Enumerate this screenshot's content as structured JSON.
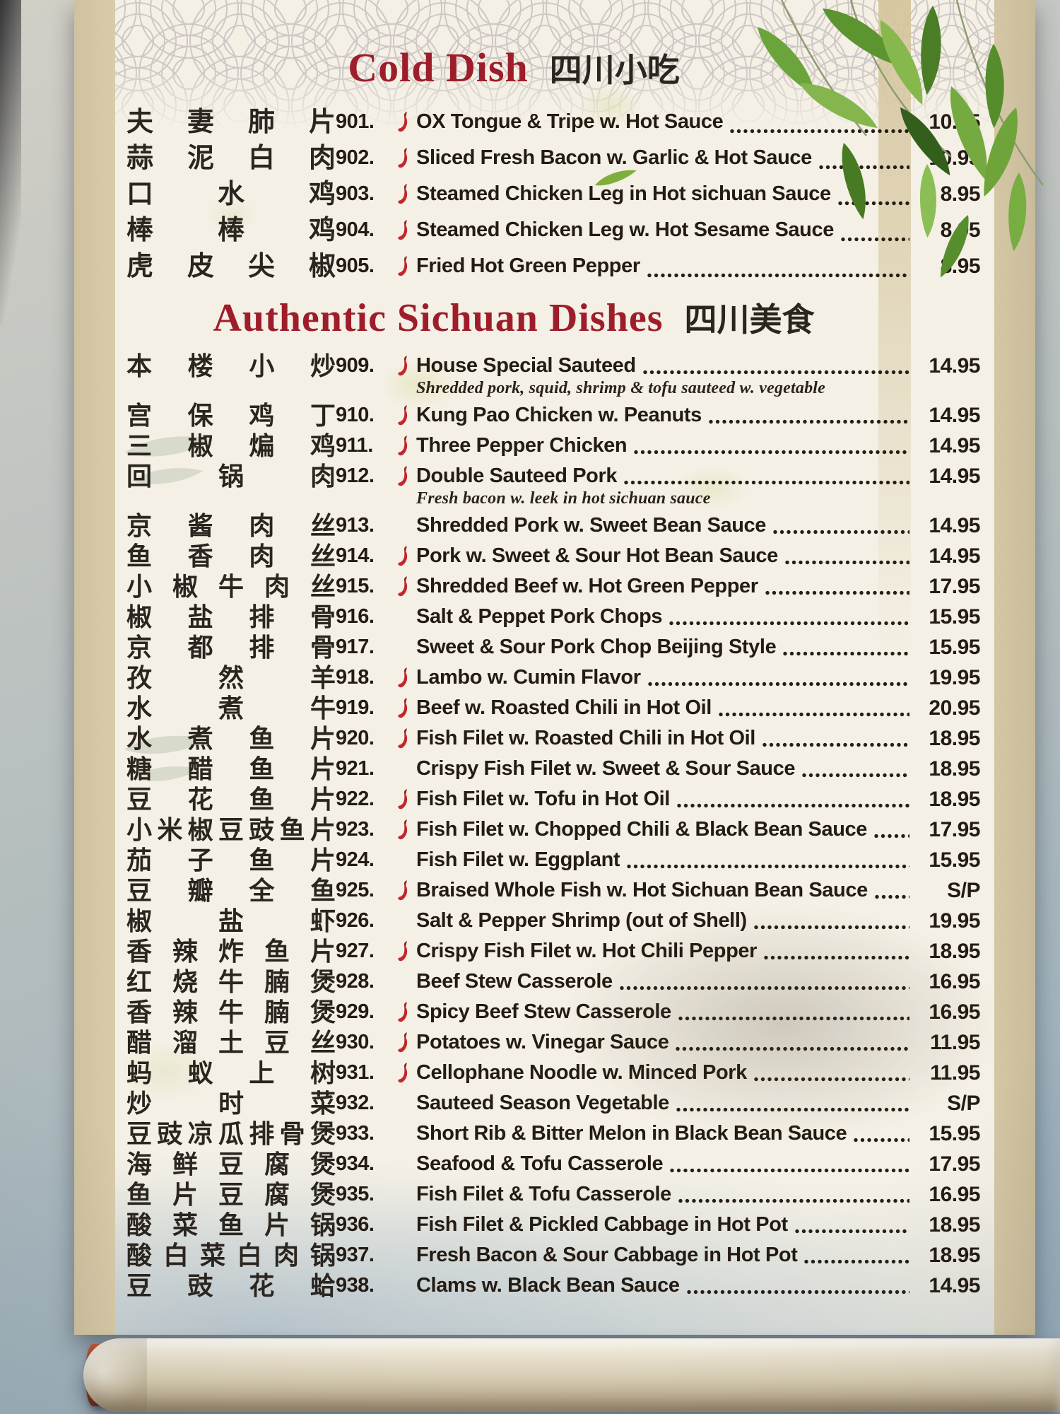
{
  "photo": {
    "subject": "Chinese restaurant hanging-scroll menu",
    "decor_icons": [
      "bamboo-leaves",
      "seigaiha-wave-pattern",
      "bamboo-stalk",
      "scroll-roller",
      "red-roller-knob"
    ],
    "colors": {
      "header_red": "#9e1d2b",
      "item_text": "#241b13",
      "pepper_red": "#c1272d",
      "paper": "#f4f0e5",
      "scroll_trim": "#d8cba9",
      "wall_blue_grey": "#a4b5bf",
      "knob_red": "#a63b22"
    },
    "spicy_icon": "chili-pepper"
  },
  "menu": {
    "sections": [
      {
        "title_en": "Cold Dish",
        "title_zh": "四川小吃",
        "items": [
          {
            "number": "901.",
            "spicy": true,
            "chinese": "夫妻肺片",
            "name": "OX Tongue & Tripe w. Hot Sauce",
            "price": "10.95"
          },
          {
            "number": "902.",
            "spicy": true,
            "chinese": "蒜泥白肉",
            "name": "Sliced Fresh Bacon w. Garlic & Hot Sauce",
            "price": "10.95"
          },
          {
            "number": "903.",
            "spicy": true,
            "chinese": "口水鸡",
            "name": "Steamed Chicken Leg in Hot sichuan Sauce",
            "price": "8.95"
          },
          {
            "number": "904.",
            "spicy": true,
            "chinese": "棒棒鸡",
            "name": "Steamed Chicken Leg w. Hot Sesame Sauce",
            "price": "8.95"
          },
          {
            "number": "905.",
            "spicy": true,
            "chinese": "虎皮尖椒",
            "name": "Fried Hot Green Pepper",
            "price": "8.95"
          }
        ]
      },
      {
        "title_en": "Authentic Sichuan Dishes",
        "title_zh": "四川美食",
        "items": [
          {
            "number": "909.",
            "spicy": true,
            "chinese": "本楼小炒",
            "name": "House Special Sauteed",
            "price": "14.95",
            "note": "Shredded pork, squid, shrimp & tofu sauteed w. vegetable"
          },
          {
            "number": "910.",
            "spicy": true,
            "chinese": "宫保鸡丁",
            "name": "Kung Pao Chicken w. Peanuts",
            "price": "14.95"
          },
          {
            "number": "911.",
            "spicy": true,
            "chinese": "三椒煸鸡",
            "name": "Three Pepper Chicken",
            "price": "14.95"
          },
          {
            "number": "912.",
            "spicy": true,
            "chinese": "回锅肉",
            "name": "Double Sauteed Pork",
            "price": "14.95",
            "note": "Fresh bacon w. leek in hot sichuan sauce"
          },
          {
            "number": "913.",
            "spicy": false,
            "chinese": "京酱肉丝",
            "name": "Shredded Pork w. Sweet Bean Sauce",
            "price": "14.95"
          },
          {
            "number": "914.",
            "spicy": true,
            "chinese": "鱼香肉丝",
            "name": "Pork w. Sweet & Sour Hot Bean Sauce",
            "price": "14.95"
          },
          {
            "number": "915.",
            "spicy": true,
            "chinese": "小椒牛肉丝",
            "name": "Shredded Beef w. Hot Green Pepper",
            "price": "17.95"
          },
          {
            "number": "916.",
            "spicy": false,
            "chinese": "椒盐排骨",
            "name": "Salt & Peppet Pork Chops",
            "price": "15.95"
          },
          {
            "number": "917.",
            "spicy": false,
            "chinese": "京都排骨",
            "name": "Sweet & Sour Pork Chop Beijing Style",
            "price": "15.95"
          },
          {
            "number": "918.",
            "spicy": true,
            "chinese": "孜然羊",
            "name": "Lambo w. Cumin Flavor",
            "price": "19.95"
          },
          {
            "number": "919.",
            "spicy": true,
            "chinese": "水煮牛",
            "name": "Beef w. Roasted Chili in Hot Oil",
            "price": "20.95"
          },
          {
            "number": "920.",
            "spicy": true,
            "chinese": "水煮鱼片",
            "name": "Fish Filet w. Roasted Chili in Hot Oil",
            "price": "18.95"
          },
          {
            "number": "921.",
            "spicy": false,
            "chinese": "糖醋鱼片",
            "name": "Crispy Fish Filet w. Sweet & Sour Sauce",
            "price": "18.95"
          },
          {
            "number": "922.",
            "spicy": true,
            "chinese": "豆花鱼片",
            "name": "Fish Filet w. Tofu in Hot Oil",
            "price": "18.95"
          },
          {
            "number": "923.",
            "spicy": true,
            "chinese": "小米椒豆豉鱼片",
            "name": "Fish Filet w. Chopped Chili & Black Bean Sauce",
            "price": "17.95"
          },
          {
            "number": "924.",
            "spicy": false,
            "chinese": "茄子鱼片",
            "name": "Fish Filet w. Eggplant",
            "price": "15.95"
          },
          {
            "number": "925.",
            "spicy": true,
            "chinese": "豆瓣全鱼",
            "name": "Braised Whole Fish w. Hot Sichuan Bean Sauce",
            "price": "S/P"
          },
          {
            "number": "926.",
            "spicy": false,
            "chinese": "椒盐虾",
            "name": "Salt & Pepper Shrimp (out of Shell)",
            "price": "19.95"
          },
          {
            "number": "927.",
            "spicy": true,
            "chinese": "香辣炸鱼片",
            "name": "Crispy Fish Filet w. Hot Chili Pepper",
            "price": "18.95"
          },
          {
            "number": "928.",
            "spicy": false,
            "chinese": "红烧牛腩煲",
            "name": "Beef Stew Casserole",
            "price": "16.95"
          },
          {
            "number": "929.",
            "spicy": true,
            "chinese": "香辣牛腩煲",
            "name": "Spicy Beef Stew Casserole",
            "price": "16.95"
          },
          {
            "number": "930.",
            "spicy": true,
            "chinese": "醋溜土豆丝",
            "name": "Potatoes w. Vinegar Sauce",
            "price": "11.95"
          },
          {
            "number": "931.",
            "spicy": true,
            "chinese": "蚂蚁上树",
            "name": "Cellophane Noodle w. Minced Pork",
            "price": "11.95"
          },
          {
            "number": "932.",
            "spicy": false,
            "chinese": "炒时菜",
            "name": "Sauteed Season Vegetable",
            "price": "S/P"
          },
          {
            "number": "933.",
            "spicy": false,
            "chinese": "豆豉凉瓜排骨煲",
            "name": "Short Rib & Bitter Melon in Black Bean Sauce",
            "price": "15.95"
          },
          {
            "number": "934.",
            "spicy": false,
            "chinese": "海鲜豆腐煲",
            "name": "Seafood & Tofu Casserole",
            "price": "17.95"
          },
          {
            "number": "935.",
            "spicy": false,
            "chinese": "鱼片豆腐煲",
            "name": "Fish Filet & Tofu Casserole",
            "price": "16.95"
          },
          {
            "number": "936.",
            "spicy": false,
            "chinese": "酸菜鱼片锅",
            "name": "Fish Filet & Pickled Cabbage in Hot Pot",
            "price": "18.95"
          },
          {
            "number": "937.",
            "spicy": false,
            "chinese": "酸白菜白肉锅",
            "name": "Fresh Bacon & Sour Cabbage in Hot Pot",
            "price": "18.95"
          },
          {
            "number": "938.",
            "spicy": false,
            "chinese": "豆豉花蛤",
            "name": "Clams w. Black Bean Sauce",
            "price": "14.95"
          }
        ]
      }
    ]
  }
}
